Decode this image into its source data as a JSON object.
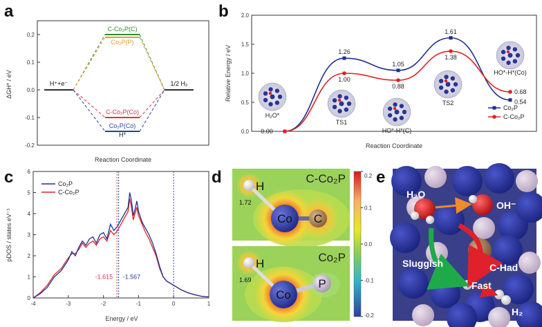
{
  "panel_labels": [
    "a",
    "b",
    "c",
    "d",
    "e"
  ],
  "chart_data": [
    {
      "panel": "a",
      "type": "line",
      "xlabel": "Reaction Coordinate",
      "ylabel": "ΔGH* / eV",
      "ylim": [
        -0.2,
        0.25
      ],
      "yticks": [
        "0.2",
        "0.1",
        "0.0",
        "-0.1",
        "-0.2"
      ],
      "states": [
        "H⁺+e⁻",
        "H*",
        "1/2 H₂"
      ],
      "series": [
        {
          "name": "C-Co₂P(C)",
          "values": [
            0.0,
            0.2,
            0.0
          ],
          "color": "#2e8b2e"
        },
        {
          "name": "Co₂P(P)",
          "values": [
            0.0,
            0.19,
            0.0
          ],
          "color": "#e69a2e"
        },
        {
          "name": "C-Co₂P(Co)",
          "values": [
            0.0,
            -0.1,
            0.0
          ],
          "color": "#d9334a"
        },
        {
          "name": "Co₂P(Co)",
          "values": [
            0.0,
            -0.15,
            0.0
          ],
          "color": "#2a3f9e"
        }
      ],
      "start_label": "H⁺+e⁻",
      "end_label": "1/2 H₂",
      "center_label": "H*"
    },
    {
      "panel": "b",
      "type": "line",
      "xlabel": "Reaction Coordinate",
      "ylabel": "Relative Energy / eV",
      "ylim": [
        0.0,
        2.0
      ],
      "yticks": [
        "0.0",
        "0.5",
        "1.0",
        "1.5",
        "2.0"
      ],
      "categories": [
        "H₂O*",
        "TS1",
        "HO*-H*(C)",
        "TS2",
        "HO*-H*(Co)"
      ],
      "series": [
        {
          "name": "Co₂P",
          "values": [
            0.0,
            1.26,
            1.05,
            1.61,
            0.54
          ],
          "color": "#1f2f8f"
        },
        {
          "name": "C-Co₂P",
          "values": [
            0.0,
            1.0,
            0.88,
            1.38,
            0.68
          ],
          "color": "#e02020"
        }
      ],
      "value_labels_top": [
        "0.00",
        "1.26",
        "1.05",
        "1.61"
      ],
      "value_labels_bottom": [
        "1.00",
        "0.88",
        "1.38"
      ],
      "end_labels": [
        "0.68",
        "0.54"
      ],
      "legend": [
        "Co₂P",
        "C-Co₂P"
      ],
      "legend_position": "bottom-right"
    },
    {
      "panel": "c",
      "type": "line",
      "xlabel": "Energy / eV",
      "ylabel": "pDOS / states eV⁻¹",
      "xlim": [
        -4,
        1
      ],
      "ylim": [
        0,
        6
      ],
      "xticks": [
        "-4",
        "-3",
        "-2",
        "-1",
        "0",
        "1"
      ],
      "yticks": [
        "0",
        "1",
        "2",
        "3",
        "4",
        "5",
        "6"
      ],
      "series": [
        {
          "name": "Co₂P",
          "color": "#1f2f8f",
          "x": [
            -4.0,
            -3.8,
            -3.6,
            -3.4,
            -3.2,
            -3.0,
            -2.9,
            -2.8,
            -2.7,
            -2.6,
            -2.5,
            -2.4,
            -2.3,
            -2.2,
            -2.1,
            -2.0,
            -1.9,
            -1.8,
            -1.7,
            -1.6,
            -1.5,
            -1.4,
            -1.3,
            -1.25,
            -1.2,
            -1.15,
            -1.1,
            -1.05,
            -1.0,
            -0.9,
            -0.8,
            -0.7,
            -0.6,
            -0.5,
            -0.4,
            -0.3,
            -0.2,
            -0.1,
            0.0,
            0.2,
            0.4,
            0.6,
            0.8,
            1.0
          ],
          "y": [
            0.0,
            0.2,
            0.5,
            1.0,
            1.3,
            1.8,
            2.2,
            2.0,
            2.4,
            2.7,
            2.5,
            2.8,
            2.9,
            2.6,
            3.0,
            3.1,
            2.8,
            3.5,
            3.2,
            3.4,
            3.7,
            4.0,
            4.3,
            5.0,
            4.6,
            3.9,
            4.2,
            4.6,
            4.1,
            3.6,
            3.3,
            3.0,
            2.6,
            2.1,
            1.5,
            1.0,
            0.8,
            0.7,
            0.6,
            0.4,
            0.25,
            0.15,
            0.08,
            0.05
          ]
        },
        {
          "name": "C-Co₂P",
          "color": "#e02020",
          "x": [
            -4.0,
            -3.8,
            -3.6,
            -3.4,
            -3.2,
            -3.0,
            -2.9,
            -2.8,
            -2.7,
            -2.6,
            -2.5,
            -2.4,
            -2.3,
            -2.2,
            -2.1,
            -2.0,
            -1.9,
            -1.8,
            -1.7,
            -1.6,
            -1.5,
            -1.4,
            -1.3,
            -1.25,
            -1.2,
            -1.15,
            -1.1,
            -1.05,
            -1.0,
            -0.9,
            -0.8,
            -0.7,
            -0.6,
            -0.5,
            -0.4,
            -0.3,
            -0.2,
            -0.1,
            0.0,
            0.2,
            0.4,
            0.6,
            0.8,
            1.0
          ],
          "y": [
            0.0,
            0.25,
            0.6,
            1.1,
            1.4,
            1.9,
            2.1,
            2.1,
            2.3,
            2.6,
            2.4,
            2.6,
            2.7,
            2.5,
            2.8,
            2.9,
            2.7,
            3.2,
            3.0,
            3.2,
            3.5,
            3.8,
            4.1,
            4.7,
            4.3,
            3.7,
            4.0,
            4.3,
            3.9,
            3.5,
            3.1,
            2.8,
            2.4,
            2.0,
            1.4,
            1.0,
            0.8,
            0.7,
            0.6,
            0.4,
            0.25,
            0.15,
            0.08,
            0.05
          ]
        }
      ],
      "reference_lines": [
        {
          "x": -1.615,
          "label": "-1.615",
          "color": "#d9334a"
        },
        {
          "x": -1.567,
          "label": "-1.567",
          "color": "#2a3f9e"
        },
        {
          "x": 0.0,
          "label": "",
          "color": "#2a3f9e"
        }
      ],
      "legend": [
        "Co₂P",
        "C-Co₂P"
      ],
      "legend_position": "top-left"
    },
    {
      "panel": "d",
      "type": "heatmap",
      "maps": [
        {
          "title": "C-Co₂P",
          "bond_length": "1.72",
          "atoms": [
            "H",
            "Co",
            "C"
          ]
        },
        {
          "title": "Co₂P",
          "bond_length": "1.69",
          "atoms": [
            "H",
            "Co",
            "P"
          ]
        }
      ],
      "colorbar_ticks": [
        "0.2",
        "0.1",
        "0.0",
        "-0.1",
        "-0.2"
      ],
      "colorbar_range": [
        -0.2,
        0.2
      ]
    }
  ],
  "panel_e": {
    "labels": [
      "H₂O",
      "OH⁻",
      "C-Had",
      "Sluggish",
      "Fast",
      "H₂"
    ]
  }
}
